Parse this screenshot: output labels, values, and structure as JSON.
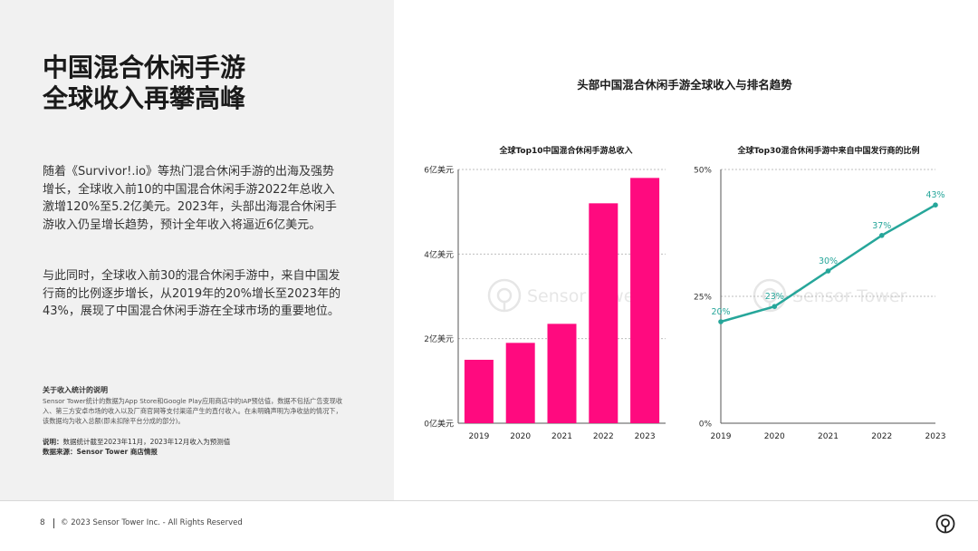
{
  "left": {
    "title_lines": [
      "中国混合休闲手游",
      "全球收入再攀高峰"
    ],
    "para1": "随着《Survivor!.io》等热门混合休闲手游的出海及强势增长，全球收入前10的中国混合休闲手游2022年总收入激增120%至5.2亿美元。2023年，头部出海混合休闲手游收入仍呈增长趋势，预计全年收入将逼近6亿美元。",
    "para2": "与此同时，全球收入前30的混合休闲手游中，来自中国发行商的比例逐步增长，从2019年的20%增长至2023年的43%，展现了中国混合休闲手游在全球市场的重要地位。",
    "note_title": "关于收入统计的说明",
    "note_body": "Sensor Tower统计的数据为App Store和Google Play应用商店中的IAP预估值，数据不包括广告变现收入、第三方安卓市场的收入以及厂商官网等支付渠道产生的直付收入。在未明确声明为净收益的情况下，该数据均为收入总额(即未扣除平台分成的部分)。",
    "explain_label": "说明：",
    "explain_text": "数据统计截至2023年11月，2023年12月收入为预测值",
    "source_label": "数据来源：",
    "source_text": "Sensor Tower 商店情报"
  },
  "footer": {
    "page_number": "8",
    "copyright": "© 2023 Sensor Tower Inc. - All Rights Reserved"
  },
  "colors": {
    "bar": "#ff0a7f",
    "line": "#26a69a",
    "left_bg": "#f1f1f1"
  },
  "icons": {
    "footer_logo": "sensor-tower-logo-icon",
    "watermark": "sensor-tower-watermark"
  },
  "watermark_text": "Sensor Tower",
  "main_title": "头部中国混合休闲手游全球收入与排名趋势",
  "chart_data": [
    {
      "type": "bar",
      "title": "全球Top10中国混合休闲手游总收入",
      "categories": [
        "2019",
        "2020",
        "2021",
        "2022",
        "2023"
      ],
      "values": [
        1.5,
        1.9,
        2.35,
        5.2,
        5.8
      ],
      "ylim": [
        0,
        6
      ],
      "yticks": [
        0,
        2,
        4,
        6
      ],
      "ytick_labels": [
        "0亿美元",
        "2亿美元",
        "4亿美元",
        "6亿美元"
      ],
      "xlabel": "",
      "ylabel": ""
    },
    {
      "type": "line",
      "title": "全球Top30混合休闲手游中来自中国发行商的比例",
      "categories": [
        "2019",
        "2020",
        "2021",
        "2022",
        "2023"
      ],
      "values": [
        20,
        23,
        30,
        37,
        43
      ],
      "data_labels": [
        "20%",
        "23%",
        "30%",
        "37%",
        "43%"
      ],
      "ylim": [
        0,
        50
      ],
      "yticks": [
        0,
        25,
        50
      ],
      "ytick_labels": [
        "0%",
        "25%",
        "50%"
      ],
      "xlabel": "",
      "ylabel": ""
    }
  ]
}
